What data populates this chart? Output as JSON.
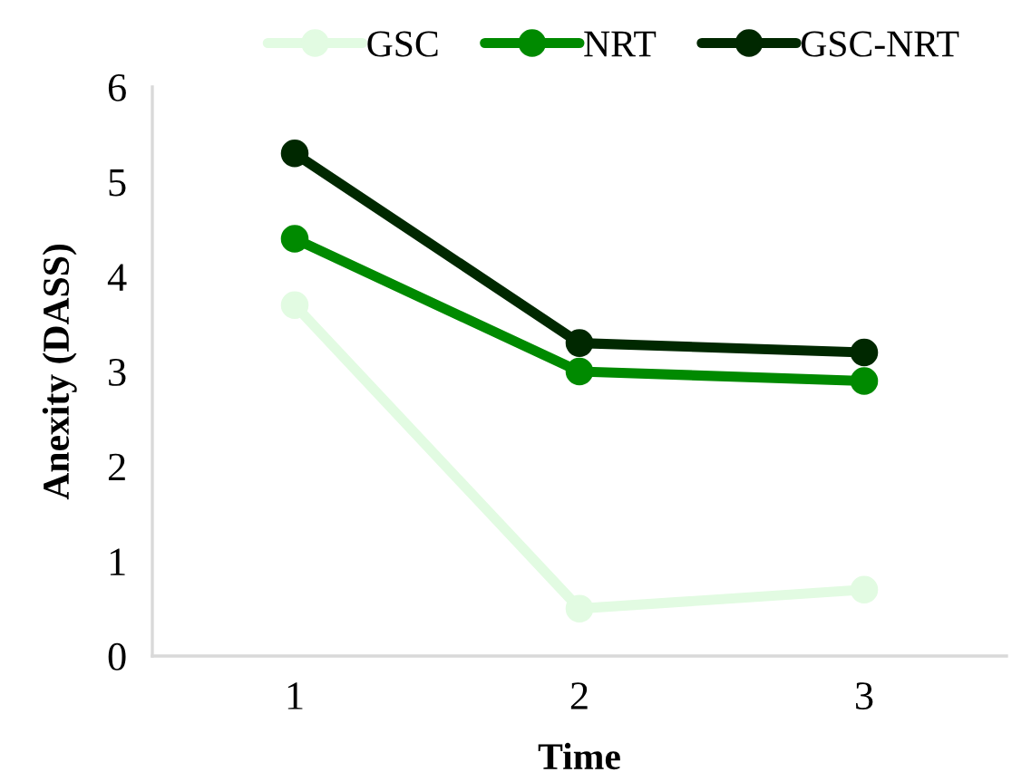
{
  "chart_data": {
    "type": "line",
    "xlabel": "Time",
    "ylabel": "Anexity (DASS)",
    "categories": [
      "1",
      "2",
      "3"
    ],
    "series": [
      {
        "name": "GSC",
        "color": "#e2fbe2",
        "values": [
          3.7,
          0.5,
          0.7
        ]
      },
      {
        "name": "NRT",
        "color": "#008a00",
        "values": [
          4.4,
          3.0,
          2.9
        ]
      },
      {
        "name": "GSC-NRT",
        "color": "#002800",
        "values": [
          5.3,
          3.3,
          3.2
        ]
      }
    ],
    "ylim": [
      0,
      6
    ],
    "yticks": [
      0,
      1,
      2,
      3,
      4,
      5,
      6
    ],
    "grid": false,
    "legend": "top",
    "marker": "circle",
    "line_style": "solid"
  }
}
